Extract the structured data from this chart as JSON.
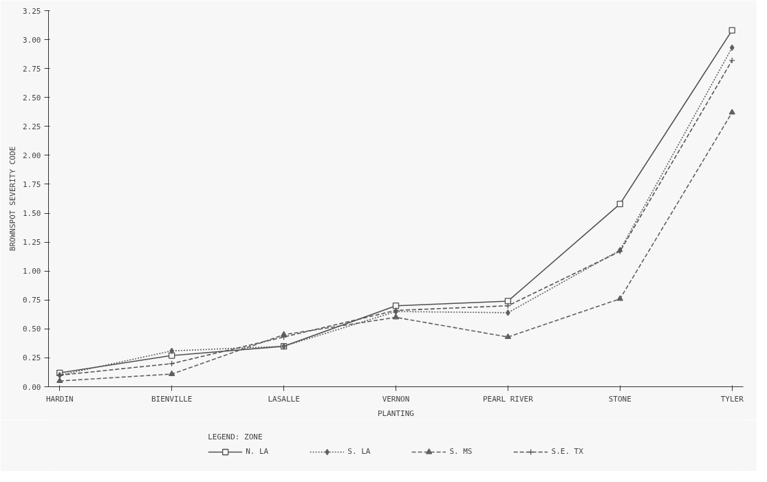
{
  "chart_data": {
    "type": "line",
    "xlabel": "PLANTING",
    "ylabel": "BROWNSPOT SEVERITY CODE",
    "legend_title": "LEGEND: ZONE",
    "categories": [
      "HARDIN",
      "BIENVILLE",
      "LASALLE",
      "VERNON",
      "PEARL RIVER",
      "STONE",
      "TYLER"
    ],
    "ylim": [
      0,
      3.25
    ],
    "yticks": [
      {
        "value": 0,
        "label": "0.00"
      },
      {
        "value": 0.25,
        "label": "0.25"
      },
      {
        "value": 0.5,
        "label": "0.50"
      },
      {
        "value": 0.75,
        "label": "0.75"
      },
      {
        "value": 1,
        "label": "1.00"
      },
      {
        "value": 1.25,
        "label": "1.25"
      },
      {
        "value": 1.5,
        "label": "1.50"
      },
      {
        "value": 1.75,
        "label": "1.75"
      },
      {
        "value": 2,
        "label": "2.00"
      },
      {
        "value": 2.25,
        "label": "2.25"
      },
      {
        "value": 2.5,
        "label": "2.50"
      },
      {
        "value": 2.75,
        "label": "2.75"
      },
      {
        "value": 3,
        "label": "3.00"
      },
      {
        "value": 3.25,
        "label": "3.25"
      }
    ],
    "grid": false,
    "legend": "bottom",
    "series": [
      {
        "name": "N. LA",
        "color": "#505050",
        "marker": "square",
        "line_style": "solid",
        "values": [
          0.12,
          0.27,
          0.35,
          0.7,
          0.74,
          1.58,
          3.08
        ]
      },
      {
        "name": "S. LA",
        "color": "#606060",
        "marker": "diamond",
        "line_style": "dotted",
        "values": [
          0.1,
          0.31,
          0.35,
          0.65,
          0.64,
          1.18,
          2.93
        ]
      },
      {
        "name": "S. MS",
        "color": "#606060",
        "marker": "triangle",
        "line_style": "dashed",
        "values": [
          0.05,
          0.11,
          0.45,
          0.6,
          0.43,
          0.76,
          2.37
        ]
      },
      {
        "name": "S.E. TX",
        "color": "#555555",
        "marker": "cross",
        "line_style": "dashed",
        "values": [
          0.1,
          0.2,
          0.43,
          0.66,
          0.7,
          1.17,
          2.82
        ]
      }
    ]
  }
}
